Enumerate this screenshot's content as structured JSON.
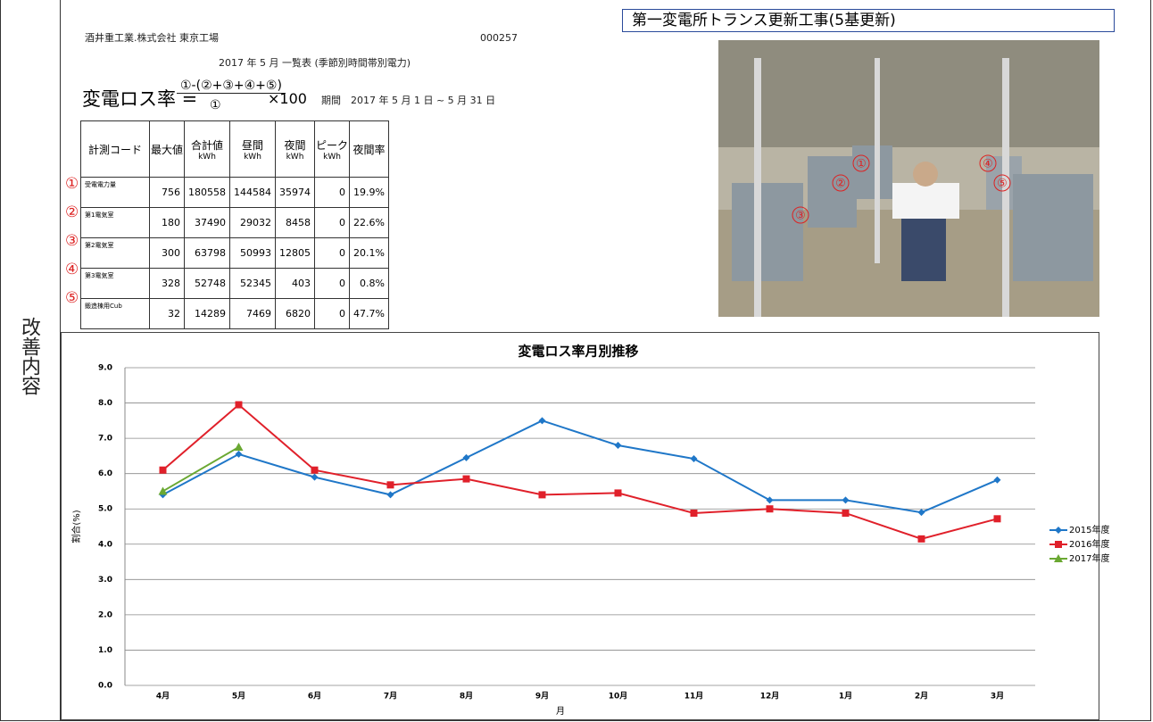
{
  "side_label": "改善内容",
  "report": {
    "company": "酒井重工業.株式会社 東京工場",
    "code": "000257",
    "subtitle": "2017 年 5 月 一覧表 (季節別時間帯別電力)",
    "formula": {
      "name": "変電ロス率 =",
      "numerator": "①-(②+③+④+⑤)",
      "denominator": "①",
      "factor": "×100"
    },
    "period": "期間　2017 年 5 月 1 日 ~ 5 月 31 日"
  },
  "table": {
    "headers": [
      "計測コード",
      "最大値",
      "合計値",
      "昼間",
      "夜間",
      "ピーク",
      "夜間率"
    ],
    "units": [
      null,
      null,
      "kWh",
      "kWh",
      "kWh",
      "kWh",
      null
    ],
    "markers": [
      "①",
      "②",
      "③",
      "④",
      "⑤"
    ],
    "rows": [
      [
        "受電電力量",
        756,
        180558,
        144584,
        35974,
        0,
        "19.9%"
      ],
      [
        "第1電気室",
        180,
        37490,
        29032,
        8458,
        0,
        "22.6%"
      ],
      [
        "第2電気室",
        300,
        63798,
        50993,
        12805,
        0,
        "20.1%"
      ],
      [
        "第3電気室",
        328,
        52748,
        52345,
        403,
        0,
        "0.8%"
      ],
      [
        "鍛造棟用Cub",
        32,
        14289,
        7469,
        6820,
        0,
        "47.7%"
      ]
    ]
  },
  "photo": {
    "title": "第一変電所トランス更新工事(5基更新)",
    "labels": [
      "①",
      "②",
      "③",
      "④",
      "⑤"
    ]
  },
  "chart_data": {
    "type": "line",
    "title": "変電ロス率月別推移",
    "y_label": "割合(%)",
    "x_label": "月",
    "categories": [
      "4月",
      "5月",
      "6月",
      "7月",
      "8月",
      "9月",
      "10月",
      "11月",
      "12月",
      "1月",
      "2月",
      "3月"
    ],
    "series": [
      {
        "name": "2015年度",
        "color": "#1f77c8",
        "marker": "diamond",
        "values": [
          5.4,
          6.55,
          5.9,
          5.4,
          6.45,
          7.5,
          6.8,
          6.42,
          5.25,
          5.25,
          4.9,
          5.82
        ]
      },
      {
        "name": "2016年度",
        "color": "#e0202a",
        "marker": "square",
        "values": [
          6.1,
          7.95,
          6.1,
          5.68,
          5.85,
          5.4,
          5.45,
          4.88,
          5.0,
          4.88,
          4.15,
          4.72
        ]
      },
      {
        "name": "2017年度",
        "color": "#6aa832",
        "marker": "triangle",
        "values": [
          5.5,
          6.75,
          null,
          null,
          null,
          null,
          null,
          null,
          null,
          null,
          null,
          null
        ]
      }
    ],
    "ylim": [
      0,
      9
    ],
    "yticks": [
      {
        "value": 0,
        "label": "0.0"
      },
      {
        "value": 1,
        "label": "1.0"
      },
      {
        "value": 2,
        "label": "2.0"
      },
      {
        "value": 3,
        "label": "3.0"
      },
      {
        "value": 4,
        "label": "4.0"
      },
      {
        "value": 5,
        "label": "5.0"
      },
      {
        "value": 6,
        "label": "6.0"
      },
      {
        "value": 7,
        "label": "7.0"
      },
      {
        "value": 8,
        "label": "8.0"
      },
      {
        "value": 9,
        "label": "9.0"
      }
    ],
    "grid": true,
    "legend": "right"
  }
}
